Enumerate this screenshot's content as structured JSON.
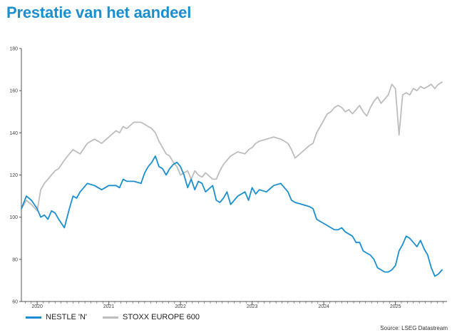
{
  "title": "Prestatie van het aandeel",
  "source": "Source: LSEG Datastream",
  "colors": {
    "title": "#1a8fd0",
    "nestle": "#1a8fd0",
    "stoxx": "#bdbdbd",
    "axis": "#555555"
  },
  "chart_data": {
    "type": "line",
    "ylim": [
      60,
      180
    ],
    "yticks": [
      60,
      80,
      100,
      120,
      140,
      160,
      180
    ],
    "xlim": [
      2019.78,
      2025.72
    ],
    "x_tick_labels": [
      "2020",
      "2021",
      "2022",
      "2023",
      "2024",
      "2025"
    ],
    "x_tick_positions": [
      2020.0,
      2021.0,
      2022.0,
      2023.0,
      2024.0,
      2025.0
    ],
    "grid": false,
    "legend": "bottom-left",
    "series": [
      {
        "name": "NESTLE 'N'",
        "color": "#1a8fd0",
        "x": [
          2019.78,
          2019.85,
          2019.92,
          2020.0,
          2020.05,
          2020.1,
          2020.15,
          2020.2,
          2020.25,
          2020.3,
          2020.38,
          2020.45,
          2020.5,
          2020.55,
          2020.6,
          2020.7,
          2020.8,
          2020.9,
          2021.0,
          2021.1,
          2021.15,
          2021.2,
          2021.25,
          2021.35,
          2021.45,
          2021.5,
          2021.55,
          2021.6,
          2021.65,
          2021.7,
          2021.75,
          2021.8,
          2021.85,
          2021.9,
          2021.95,
          2022.0,
          2022.05,
          2022.1,
          2022.15,
          2022.2,
          2022.25,
          2022.3,
          2022.35,
          2022.45,
          2022.5,
          2022.55,
          2022.6,
          2022.65,
          2022.7,
          2022.8,
          2022.9,
          2022.95,
          2023.0,
          2023.05,
          2023.1,
          2023.2,
          2023.3,
          2023.4,
          2023.5,
          2023.55,
          2023.6,
          2023.7,
          2023.8,
          2023.85,
          2023.9,
          2023.95,
          2024.0,
          2024.05,
          2024.1,
          2024.15,
          2024.2,
          2024.25,
          2024.3,
          2024.35,
          2024.4,
          2024.45,
          2024.5,
          2024.55,
          2024.6,
          2024.65,
          2024.7,
          2024.75,
          2024.8,
          2024.85,
          2024.9,
          2024.95,
          2025.0,
          2025.05,
          2025.1,
          2025.15,
          2025.2,
          2025.25,
          2025.3,
          2025.35,
          2025.4,
          2025.45,
          2025.5,
          2025.55,
          2025.6,
          2025.65
        ],
        "y": [
          104,
          110,
          108,
          104,
          100,
          101,
          99,
          103,
          102,
          99,
          95,
          104,
          110,
          109,
          112,
          116,
          115,
          113,
          115,
          115,
          114,
          118,
          117,
          117,
          116,
          121,
          124,
          126,
          129,
          124,
          123,
          120,
          123,
          125,
          126,
          124,
          120,
          114,
          118,
          113,
          117,
          116,
          112,
          115,
          108,
          107,
          109,
          112,
          106,
          110,
          112,
          108,
          114,
          111,
          113,
          112,
          115,
          116,
          112,
          108,
          107,
          106,
          105,
          104,
          99,
          98,
          97,
          96,
          95,
          94,
          94,
          95,
          93,
          92,
          91,
          88,
          88,
          84,
          83,
          82,
          80,
          76,
          75,
          74,
          74,
          75,
          77,
          84,
          87,
          91,
          90,
          88,
          86,
          89,
          85,
          82,
          76,
          72,
          73,
          75
        ]
      },
      {
        "name": "STOXX EUROPE 600",
        "color": "#bdbdbd",
        "x": [
          2019.78,
          2019.85,
          2019.92,
          2020.0,
          2020.05,
          2020.1,
          2020.15,
          2020.2,
          2020.25,
          2020.3,
          2020.38,
          2020.45,
          2020.5,
          2020.55,
          2020.6,
          2020.7,
          2020.8,
          2020.9,
          2021.0,
          2021.1,
          2021.15,
          2021.2,
          2021.25,
          2021.35,
          2021.45,
          2021.5,
          2021.55,
          2021.6,
          2021.65,
          2021.7,
          2021.75,
          2021.8,
          2021.85,
          2021.9,
          2021.95,
          2022.0,
          2022.05,
          2022.1,
          2022.15,
          2022.2,
          2022.25,
          2022.3,
          2022.35,
          2022.45,
          2022.5,
          2022.55,
          2022.6,
          2022.65,
          2022.7,
          2022.8,
          2022.9,
          2022.95,
          2023.0,
          2023.05,
          2023.1,
          2023.2,
          2023.3,
          2023.4,
          2023.5,
          2023.55,
          2023.6,
          2023.7,
          2023.8,
          2023.85,
          2023.9,
          2023.95,
          2024.0,
          2024.05,
          2024.1,
          2024.15,
          2024.2,
          2024.25,
          2024.3,
          2024.35,
          2024.4,
          2024.45,
          2024.5,
          2024.55,
          2024.6,
          2024.65,
          2024.7,
          2024.75,
          2024.8,
          2024.85,
          2024.9,
          2024.95,
          2025.0,
          2025.05,
          2025.1,
          2025.15,
          2025.2,
          2025.25,
          2025.3,
          2025.35,
          2025.4,
          2025.45,
          2025.5,
          2025.55,
          2025.6,
          2025.65
        ],
        "y": [
          104,
          108,
          106,
          103,
          113,
          116,
          118,
          120,
          122,
          123,
          127,
          130,
          132,
          131,
          130,
          135,
          137,
          135,
          138,
          141,
          140,
          143,
          142,
          145,
          145,
          144,
          143,
          142,
          140,
          136,
          133,
          130,
          129,
          126,
          124,
          120,
          121,
          122,
          118,
          122,
          120,
          119,
          121,
          118,
          118,
          122,
          125,
          127,
          129,
          131,
          130,
          132,
          133,
          135,
          136,
          137,
          138,
          137,
          135,
          132,
          128,
          131,
          134,
          135,
          140,
          143,
          146,
          149,
          150,
          152,
          153,
          152,
          150,
          151,
          149,
          151,
          153,
          150,
          148,
          152,
          155,
          157,
          154,
          156,
          158,
          163,
          161,
          139,
          158,
          159,
          158,
          161,
          160,
          162,
          161,
          162,
          163,
          161,
          163,
          164
        ]
      }
    ]
  }
}
